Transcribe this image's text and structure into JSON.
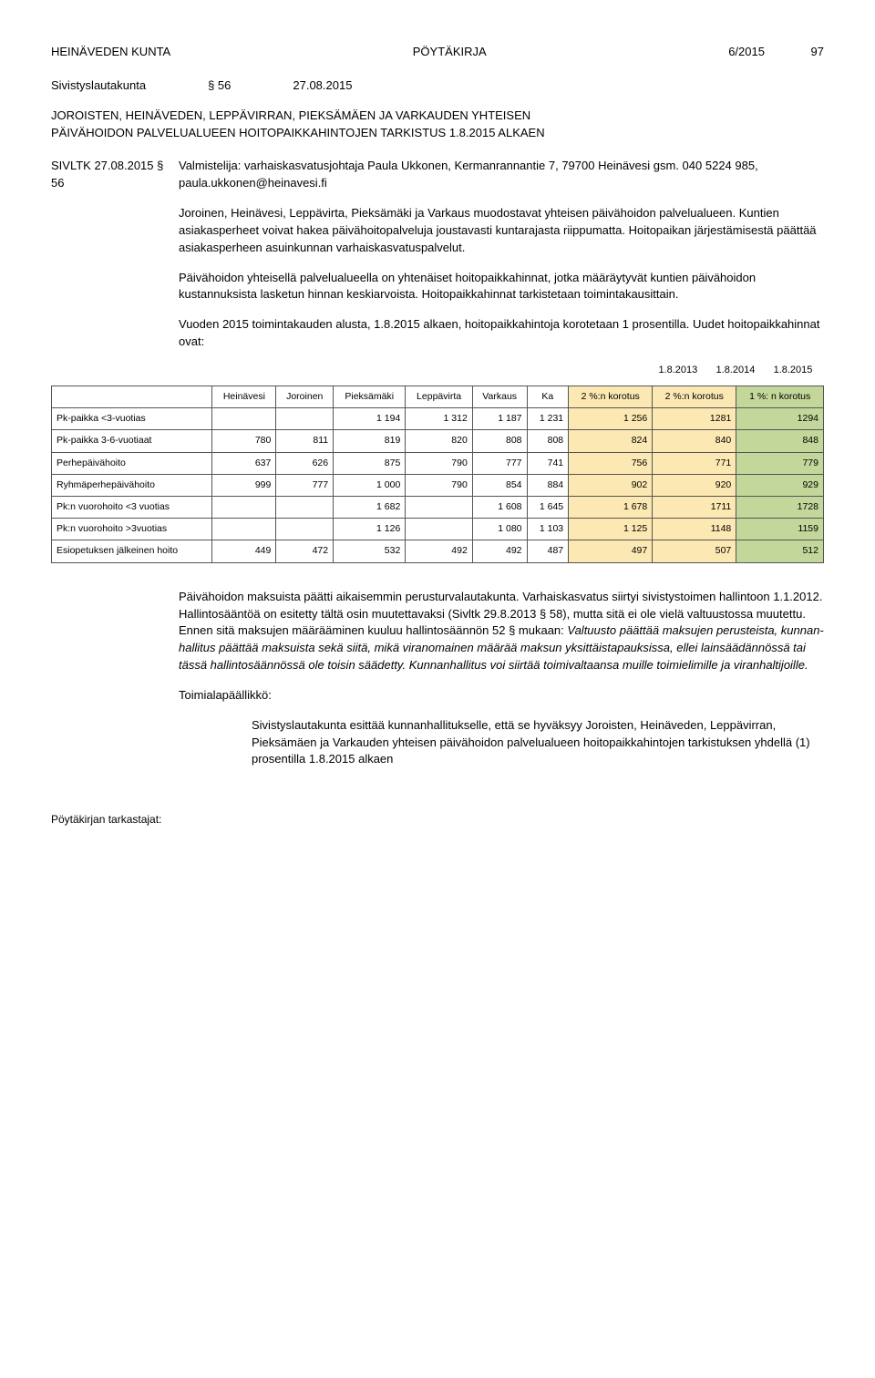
{
  "header": {
    "org": "HEINÄVEDEN KUNTA",
    "doctype": "PÖYTÄKIRJA",
    "docnum": "6/2015",
    "page": "97"
  },
  "committee": {
    "name": "Sivistyslautakunta",
    "section": "§ 56",
    "date": "27.08.2015"
  },
  "topic": {
    "title_l1": "JOROISTEN, HEINÄVEDEN, LEPPÄVIRRAN, PIEKSÄMÄEN JA VARKAUDEN YHTEISEN",
    "title_l2": "PÄIVÄHOIDON PALVELUALUEEN HOITOPAIKKAHINTOJEN TARKISTUS 1.8.2015 ALKAEN"
  },
  "prep": {
    "label": "SIVLTK 27.08.2015 § 56",
    "text": "Valmistelija: varhaiskasvatusjohtaja Paula Ukkonen, Kermanrannantie 7, 79700 Heinävesi gsm. 040 5224 985, paula.ukkonen@heinavesi.fi"
  },
  "body": {
    "p1": "Joroinen, Heinävesi, Leppävirta, Pieksämäki ja Varkaus muodostavat yh­tei­sen päivähoidon palvelualueen. Kuntien asiakasperheet voivat hakea päi­vä­hoi­to­pal­ve­lu­ja joustavasti kuntarajasta riippumatta. Hoitopaikan jär­jes­tä­mi­ses­tä päättää asiakasperheen asuinkunnan var­hais­kas­va­tus­pal­ve­lut.",
    "p2": "Päivähoidon yhteisellä palvelualueella on yhtenäiset hoitopaikkahinnat, jot­ka määräytyvät kuntien päivähoidon kustannuksista lasketun hinnan kes­ki­ar­vois­ta. Hoitopaikkahinnat tarkistetaan toimintakausittain.",
    "p3": "Vuoden 2015 toimintakauden alusta, 1.8.2015 alkaen, hoitopaikkahintoja ko­ro­te­taan 1 prosentilla. Uudet hoitopaikkahinnat ovat:"
  },
  "table": {
    "dates": [
      "1.8.2013",
      "1.8.2014",
      "1.8.2015"
    ],
    "cols": [
      "Heinävesi",
      "Joroinen",
      "Pieksämäki",
      "Leppävirta",
      "Varkaus",
      "Ka",
      "2 %:n koro­tus",
      "2 %:n ko­ro­tus",
      "1 %: n korotus"
    ],
    "rows": [
      {
        "label": "Pk-paikka <3-vuotias",
        "cells": [
          "",
          "",
          "1 194",
          "1 312",
          "1 187",
          "1 231",
          "1 256",
          "1281",
          "1294"
        ]
      },
      {
        "label": "Pk-paikka 3-6-vuotiaat",
        "cells": [
          "780",
          "811",
          "819",
          "820",
          "808",
          "808",
          "824",
          "840",
          "848"
        ]
      },
      {
        "label": "Perhepäivähoito",
        "cells": [
          "637",
          "626",
          "875",
          "790",
          "777",
          "741",
          "756",
          "771",
          "779"
        ]
      },
      {
        "label": "Ryhmäperhepäivähoito",
        "cells": [
          "999",
          "777",
          "1 000",
          "790",
          "854",
          "884",
          "902",
          "920",
          "929"
        ]
      },
      {
        "label": "Pk:n vuorohoito <3 vuo­tias",
        "cells": [
          "",
          "",
          "1 682",
          "",
          "1 608",
          "1 645",
          "1 678",
          "1711",
          "1728"
        ]
      },
      {
        "label": "Pk:n vuorohoito >3vuo­tias",
        "cells": [
          "",
          "",
          "1 126",
          "",
          "1 080",
          "1 103",
          "1 125",
          "1148",
          "1159"
        ]
      },
      {
        "label": "Esiopetuksen jälkeinen hoi­to",
        "cells": [
          "449",
          "472",
          "532",
          "492",
          "492",
          "487",
          "497",
          "507",
          "512"
        ]
      }
    ]
  },
  "after": {
    "p1a": "Päivähoidon maksuista päätti aikaisemmin perusturvalautakunta. Var­hais­kas­va­tus siirtyi sivistystoimen hallintoon 1.1.2012. Hallintosääntöä on esi­tet­ty tältä osin muutettavaksi (Sivltk 29.8.2013 § 58), mutta sitä ei ole vie­lä valtuustossa muutettu. Ennen sitä maksujen määrääminen kuuluu hal­lin­to­sään­nön 52 § mukaan: ",
    "p1b_italic": "Valtuusto päättää maksujen perusteista, kun­nan­hal­li­tus päättää maksuista sekä siitä, mikä viranomainen määrää mak­sun yksittäistapauksissa, ellei lainsäädännössä tai tässä hallintosäännössä ole toi­sin säädetty. Kunnanhallitus voi siirtää toimivaltaansa muille toimielimille ja viranhaltijoille.",
    "chief": "Toimialapäällikkö:",
    "p2": "Sivistyslautakunta esittää kunnanhallitukselle, että se hy­väk­syy Joroisten, Heinäveden, Leppävirran, Pieksämäen ja Var­kau­den yhteisen päivähoidon palvelualueen hoi­to­paik­ka­hin­to­jen tarkistuksen yhdellä (1) prosentilla 1.8.2015 al­kaen"
  },
  "footer": "Pöytäkirjan tarkastajat:"
}
